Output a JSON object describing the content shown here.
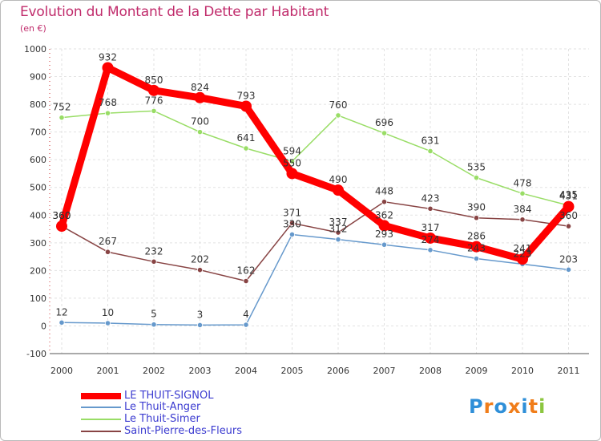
{
  "title": "Evolution du Montant de la Dette par Habitant",
  "subtitle": "(en €)",
  "brand": {
    "text": "Proxiti",
    "letters": [
      "P",
      "r",
      "o",
      "x",
      "i",
      "t",
      "i"
    ],
    "letter_colors": [
      "#2f8fd8",
      "#f07d1a",
      "#2f8fd8",
      "#f07d1a",
      "#2f8fd8",
      "#f07d1a",
      "#8cc63f"
    ]
  },
  "chart_data": {
    "type": "line",
    "x": [
      2000,
      2001,
      2002,
      2003,
      2004,
      2005,
      2006,
      2007,
      2008,
      2009,
      2010,
      2011
    ],
    "ylim": [
      -100,
      1000
    ],
    "yticks": [
      -100,
      0,
      100,
      200,
      300,
      400,
      500,
      600,
      700,
      800,
      900,
      1000
    ],
    "grid": true,
    "legend_position": "bottom-left",
    "series": [
      {
        "name": "LE THUIT-SIGNOL",
        "color": "#ff0000",
        "values": [
          360,
          932,
          850,
          824,
          793,
          550,
          490,
          362,
          317,
          286,
          241,
          431
        ],
        "labels": [
          "360",
          "932",
          "850",
          "824",
          "793",
          "550",
          "490",
          "362",
          "317",
          "286",
          "241",
          "431"
        ],
        "emphasis": true
      },
      {
        "name": "Le Thuit-Anger",
        "color": "#6699cc",
        "values": [
          12,
          10,
          5,
          3,
          4,
          330,
          312,
          293,
          274,
          243,
          223,
          203
        ],
        "labels": [
          "12",
          "10",
          "5",
          "3",
          "4",
          "330",
          "312",
          "293",
          "274",
          "243",
          "223",
          "203"
        ],
        "emphasis": false
      },
      {
        "name": "Le Thuit-Simer",
        "color": "#99dd66",
        "values": [
          752,
          768,
          776,
          700,
          641,
          594,
          760,
          696,
          631,
          535,
          478,
          435
        ],
        "labels": [
          "752",
          "768",
          "776",
          "700",
          "641",
          "594",
          "760",
          "696",
          "631",
          "535",
          "478",
          "435"
        ],
        "emphasis": false
      },
      {
        "name": "Saint-Pierre-des-Fleurs",
        "color": "#884444",
        "values": [
          360,
          267,
          232,
          202,
          162,
          371,
          337,
          448,
          423,
          390,
          384,
          360
        ],
        "labels": [
          "360",
          "267",
          "232",
          "202",
          "162",
          "371",
          "337",
          "448",
          "423",
          "390",
          "384",
          "360"
        ],
        "emphasis": false
      }
    ]
  }
}
